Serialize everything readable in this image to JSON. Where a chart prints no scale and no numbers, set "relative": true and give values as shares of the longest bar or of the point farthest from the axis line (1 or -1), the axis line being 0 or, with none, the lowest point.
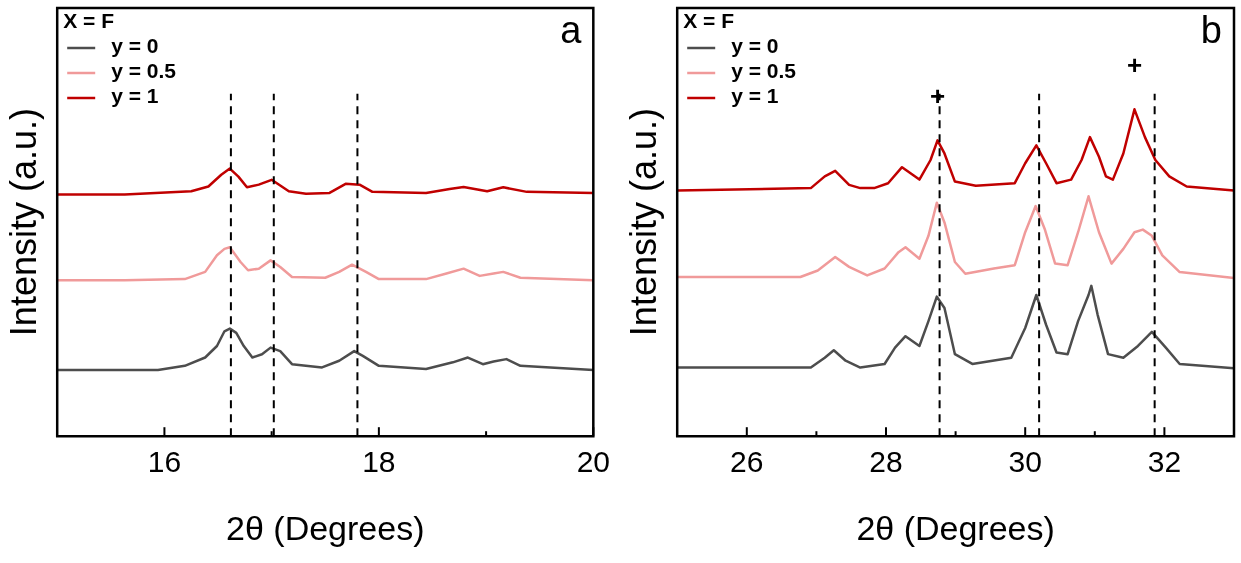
{
  "chart_data": [
    {
      "type": "line",
      "relative": true,
      "xlim": [
        15,
        20
      ],
      "xticks": [
        16,
        {
          "value": 17,
          "label": null
        },
        18,
        {
          "value": 19,
          "label": null
        },
        20
      ],
      "xlabel": "2θ (Degrees)",
      "ylabel": "Intensity (a.u.)",
      "legend_title": "X = F",
      "legend": "top left",
      "grid": false,
      "marker": "none",
      "line_style": "solid",
      "series": [
        {
          "name": "y = 0",
          "color": "#4d4d4d",
          "x": [
            15,
            15.94,
            16.19,
            16.38,
            16.49,
            16.56,
            16.61,
            16.67,
            16.74,
            16.82,
            16.91,
            16.99,
            17.08,
            17.19,
            17.47,
            17.63,
            17.77,
            17.85,
            18.0,
            18.44,
            18.69,
            18.83,
            18.97,
            19.07,
            19.19,
            19.32,
            20
          ],
          "values": [
            0.247,
            0.247,
            0.263,
            0.294,
            0.337,
            0.392,
            0.402,
            0.386,
            0.337,
            0.294,
            0.306,
            0.331,
            0.318,
            0.269,
            0.257,
            0.282,
            0.318,
            0.3,
            0.263,
            0.251,
            0.276,
            0.294,
            0.269,
            0.279,
            0.288,
            0.263,
            0.247
          ]
        },
        {
          "name": "y = 0.5",
          "color": "#f09a9a",
          "x": [
            15,
            15.63,
            16.19,
            16.38,
            16.49,
            16.56,
            16.61,
            16.71,
            16.78,
            16.88,
            16.99,
            17.08,
            17.19,
            17.5,
            17.63,
            17.75,
            17.88,
            18.0,
            18.44,
            18.63,
            18.79,
            18.94,
            19.07,
            19.16,
            19.32,
            20
          ],
          "values": [
            0.583,
            0.583,
            0.587,
            0.614,
            0.676,
            0.7,
            0.706,
            0.651,
            0.62,
            0.626,
            0.657,
            0.632,
            0.595,
            0.592,
            0.614,
            0.641,
            0.614,
            0.587,
            0.587,
            0.608,
            0.626,
            0.599,
            0.608,
            0.614,
            0.592,
            0.583
          ]
        },
        {
          "name": "y = 1",
          "color": "#c00000",
          "x": [
            15,
            15.63,
            16.25,
            16.41,
            16.53,
            16.61,
            16.69,
            16.77,
            16.88,
            17.0,
            17.16,
            17.32,
            17.54,
            17.69,
            17.82,
            17.94,
            18.44,
            18.66,
            18.79,
            19.01,
            19.16,
            19.38,
            20
          ],
          "values": [
            0.903,
            0.903,
            0.915,
            0.933,
            0.977,
            1,
            0.97,
            0.93,
            0.94,
            0.958,
            0.915,
            0.906,
            0.909,
            0.943,
            0.94,
            0.913,
            0.909,
            0.924,
            0.931,
            0.915,
            0.93,
            0.913,
            0.909
          ]
        }
      ],
      "ref_lines": [
        {
          "axis": "x",
          "value": 16.62,
          "color": "#000000",
          "line_style": "dashed"
        },
        {
          "axis": "x",
          "value": 17.02,
          "color": "#000000",
          "line_style": "dashed"
        },
        {
          "axis": "x",
          "value": 17.8,
          "color": "#000000",
          "line_style": "dashed"
        }
      ],
      "annotations": [
        "a"
      ]
    },
    {
      "type": "line",
      "relative": true,
      "xlim": [
        25,
        33
      ],
      "xticks": [
        26,
        {
          "value": 27,
          "label": null
        },
        28,
        {
          "value": 29,
          "label": null
        },
        30,
        {
          "value": 31,
          "label": null
        },
        32
      ],
      "xlabel": "2θ (Degrees)",
      "ylabel": "Intensity (a.u.)",
      "legend_title": "X = F",
      "legend": "top left",
      "grid": false,
      "marker": "none",
      "line_style": "solid",
      "series": [
        {
          "name": "y = 0",
          "color": "#4d4d4d",
          "x": [
            25,
            26.92,
            27.12,
            27.25,
            27.42,
            27.63,
            27.98,
            28.13,
            28.28,
            28.48,
            28.61,
            28.73,
            28.84,
            28.99,
            29.24,
            29.8,
            30.0,
            30.16,
            30.3,
            30.45,
            30.61,
            30.76,
            30.91,
            30.95,
            31.04,
            31.19,
            31.41,
            31.62,
            31.82,
            32.02,
            32.22,
            33
          ],
          "values": [
            0.21,
            0.21,
            0.24,
            0.263,
            0.231,
            0.21,
            0.221,
            0.271,
            0.306,
            0.276,
            0.352,
            0.427,
            0.392,
            0.251,
            0.221,
            0.24,
            0.331,
            0.432,
            0.341,
            0.256,
            0.251,
            0.352,
            0.432,
            0.46,
            0.372,
            0.251,
            0.24,
            0.276,
            0.319,
            0.271,
            0.221,
            0.208
          ]
        },
        {
          "name": "y = 0.5",
          "color": "#f09a9a",
          "x": [
            25,
            26.77,
            27.02,
            27.27,
            27.47,
            27.73,
            27.98,
            28.18,
            28.28,
            28.48,
            28.61,
            28.73,
            28.84,
            28.99,
            29.14,
            29.55,
            29.85,
            30.0,
            30.15,
            30.28,
            30.43,
            30.61,
            30.76,
            30.91,
            31.06,
            31.24,
            31.41,
            31.57,
            31.69,
            31.82,
            31.97,
            32.22,
            33
          ],
          "values": [
            0.487,
            0.487,
            0.507,
            0.548,
            0.518,
            0.492,
            0.513,
            0.563,
            0.578,
            0.543,
            0.613,
            0.714,
            0.654,
            0.533,
            0.497,
            0.513,
            0.523,
            0.624,
            0.704,
            0.634,
            0.528,
            0.523,
            0.624,
            0.734,
            0.624,
            0.528,
            0.573,
            0.624,
            0.632,
            0.613,
            0.553,
            0.502,
            0.484
          ]
        },
        {
          "name": "y = 1",
          "color": "#c00000",
          "x": [
            25,
            26.92,
            27.12,
            27.27,
            27.47,
            27.63,
            27.83,
            28.03,
            28.23,
            28.48,
            28.64,
            28.74,
            28.84,
            28.99,
            29.29,
            29.85,
            30.0,
            30.16,
            30.3,
            30.45,
            30.66,
            30.81,
            30.93,
            31.06,
            31.16,
            31.26,
            31.41,
            31.57,
            31.72,
            31.87,
            32.07,
            32.32,
            33
          ],
          "values": [
            0.752,
            0.759,
            0.795,
            0.812,
            0.769,
            0.759,
            0.759,
            0.774,
            0.823,
            0.785,
            0.845,
            0.905,
            0.865,
            0.779,
            0.766,
            0.774,
            0.835,
            0.89,
            0.835,
            0.774,
            0.785,
            0.845,
            0.915,
            0.855,
            0.795,
            0.785,
            0.865,
            1,
            0.915,
            0.845,
            0.795,
            0.764,
            0.752
          ]
        }
      ],
      "ref_lines": [
        {
          "axis": "x",
          "value": 28.77,
          "color": "#000000",
          "line_style": "dashed"
        },
        {
          "axis": "x",
          "value": 30.2,
          "color": "#000000",
          "line_style": "dashed"
        },
        {
          "axis": "x",
          "value": 31.86,
          "color": "#000000",
          "line_style": "dashed"
        }
      ],
      "annotations": [
        "b",
        {
          "text": "+",
          "x": 28.74,
          "y": 0.905
        },
        {
          "text": "+",
          "x": 31.57,
          "y": 1
        }
      ]
    }
  ]
}
